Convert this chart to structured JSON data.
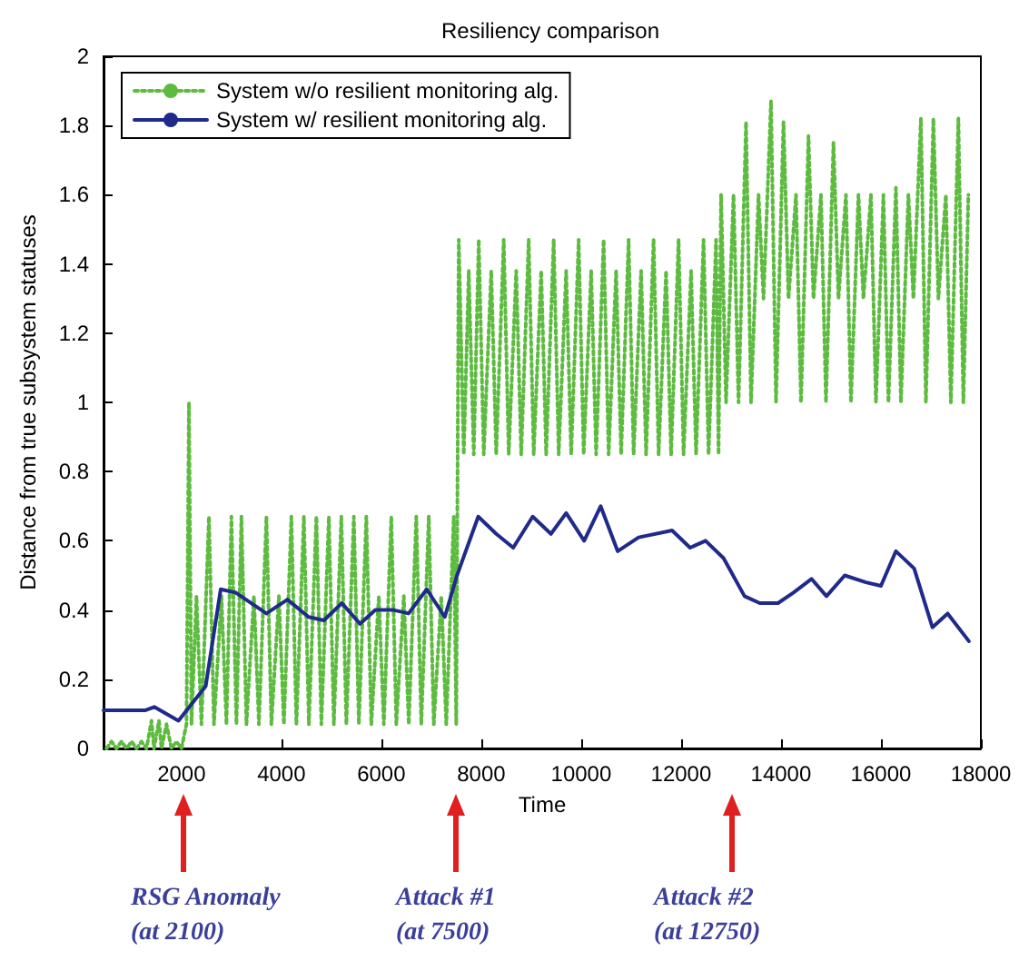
{
  "chart_data": {
    "type": "line",
    "title": "Resiliency comparison",
    "xlabel": "Time",
    "ylabel": "Distance from true subsystem statuses",
    "xlim": [
      440,
      18000
    ],
    "xticks": [
      2000,
      4000,
      6000,
      8000,
      10000,
      12000,
      14000,
      16000,
      18000
    ],
    "ylim": [
      0,
      2
    ],
    "yticks": [
      0,
      0.2,
      0.4,
      0.6,
      0.8,
      1,
      1.2,
      1.4,
      1.6,
      1.8,
      2
    ],
    "grid": false,
    "legend": "top left",
    "marker": "none",
    "series": [
      {
        "name": "System w/o resilient monitoring alg.",
        "color": "#5dbb3f",
        "line_style": "dotted",
        "x": [
          500,
          600,
          700,
          800,
          900,
          1000,
          1100,
          1200,
          1300,
          1400,
          1450,
          1550,
          1600,
          1700,
          1800,
          1900,
          2000,
          2100,
          2150,
          2200,
          2300,
          2400,
          2550,
          2650,
          2800,
          2900,
          3000,
          3100,
          3200,
          3300,
          3450,
          3550,
          3700,
          3800,
          3950,
          4050,
          4200,
          4300,
          4450,
          4550,
          4700,
          4800,
          4950,
          5050,
          5200,
          5300,
          5450,
          5550,
          5700,
          5800,
          5950,
          6050,
          6200,
          6300,
          6450,
          6550,
          6700,
          6800,
          6950,
          7050,
          7200,
          7300,
          7450,
          7500,
          7550,
          7650,
          7750,
          7850,
          7950,
          8050,
          8200,
          8300,
          8450,
          8550,
          8700,
          8800,
          8950,
          9050,
          9200,
          9300,
          9450,
          9550,
          9700,
          9800,
          9950,
          10050,
          10200,
          10300,
          10450,
          10550,
          10700,
          10800,
          10950,
          11050,
          11200,
          11300,
          11450,
          11550,
          11700,
          11800,
          11950,
          12050,
          12200,
          12300,
          12450,
          12550,
          12700,
          12750,
          12800,
          12900,
          13050,
          13150,
          13300,
          13400,
          13550,
          13650,
          13800,
          13900,
          14050,
          14150,
          14300,
          14400,
          14550,
          14650,
          14800,
          14900,
          15050,
          15150,
          15300,
          15400,
          15550,
          15650,
          15800,
          15900,
          16050,
          16150,
          16300,
          16400,
          16550,
          16650,
          16800,
          16900,
          17050,
          17150,
          17300,
          17400,
          17550,
          17650,
          17750
        ],
        "values": [
          0,
          0.02,
          0,
          0.02,
          0,
          0.02,
          0,
          0.02,
          0,
          0.08,
          0,
          0.08,
          0,
          0.07,
          0,
          0.02,
          0,
          0.07,
          1.0,
          0.07,
          0.44,
          0.07,
          0.67,
          0.07,
          0.44,
          0.07,
          0.67,
          0.07,
          0.67,
          0.07,
          0.44,
          0.07,
          0.67,
          0.07,
          0.44,
          0.07,
          0.67,
          0.07,
          0.67,
          0.07,
          0.67,
          0.07,
          0.67,
          0.07,
          0.67,
          0.07,
          0.67,
          0.07,
          0.67,
          0.07,
          0.44,
          0.07,
          0.67,
          0.07,
          0.44,
          0.07,
          0.67,
          0.07,
          0.67,
          0.07,
          0.44,
          0.07,
          0.67,
          0.07,
          1.47,
          0.85,
          1.38,
          0.85,
          1.47,
          0.85,
          1.38,
          0.85,
          1.47,
          0.85,
          1.38,
          0.85,
          1.47,
          0.85,
          1.38,
          0.85,
          1.47,
          0.85,
          1.38,
          0.85,
          1.47,
          0.85,
          1.38,
          0.85,
          1.47,
          0.85,
          1.38,
          0.85,
          1.47,
          0.85,
          1.38,
          0.85,
          1.47,
          0.85,
          1.38,
          0.85,
          1.47,
          0.85,
          1.38,
          0.85,
          1.47,
          0.85,
          1.47,
          0.85,
          1.6,
          1.0,
          1.6,
          1.0,
          1.81,
          1.0,
          1.6,
          1.3,
          1.87,
          1.0,
          1.81,
          1.3,
          1.6,
          1.0,
          1.77,
          1.3,
          1.6,
          1.0,
          1.75,
          1.3,
          1.6,
          1.0,
          1.6,
          1.3,
          1.6,
          1.0,
          1.6,
          1.0,
          1.62,
          1.0,
          1.6,
          1.3,
          1.82,
          1.0,
          1.82,
          1.3,
          1.6,
          1.0,
          1.82,
          1.0,
          1.6
        ]
      },
      {
        "name": "System w/ resilient monitoring alg.",
        "color": "#1f2a8a",
        "line_style": "solid",
        "x": [
          440,
          790,
          1270,
          1455,
          1940,
          2485,
          2785,
          3090,
          3700,
          4120,
          4545,
          4850,
          5210,
          5575,
          5880,
          6245,
          6545,
          6910,
          7270,
          7515,
          7940,
          8300,
          8640,
          9030,
          9395,
          9700,
          10060,
          10390,
          10730,
          11150,
          11820,
          12180,
          12490,
          12850,
          13270,
          13575,
          13940,
          14245,
          14610,
          14910,
          15275,
          15700,
          16000,
          16300,
          16665,
          17030,
          17335,
          17760
        ],
        "values": [
          0.11,
          0.11,
          0.11,
          0.12,
          0.08,
          0.18,
          0.46,
          0.45,
          0.39,
          0.43,
          0.38,
          0.37,
          0.42,
          0.36,
          0.4,
          0.4,
          0.39,
          0.46,
          0.38,
          0.5,
          0.67,
          0.62,
          0.58,
          0.67,
          0.62,
          0.68,
          0.6,
          0.7,
          0.57,
          0.61,
          0.63,
          0.58,
          0.6,
          0.55,
          0.44,
          0.42,
          0.42,
          0.45,
          0.49,
          0.44,
          0.5,
          0.48,
          0.47,
          0.57,
          0.52,
          0.35,
          0.39,
          0.31
        ]
      }
    ],
    "annotations": [
      "RSG Anomaly\n(at 2100)",
      "Attack #1\n(at 7500)",
      "Attack #2\n(at 12750)"
    ]
  }
}
